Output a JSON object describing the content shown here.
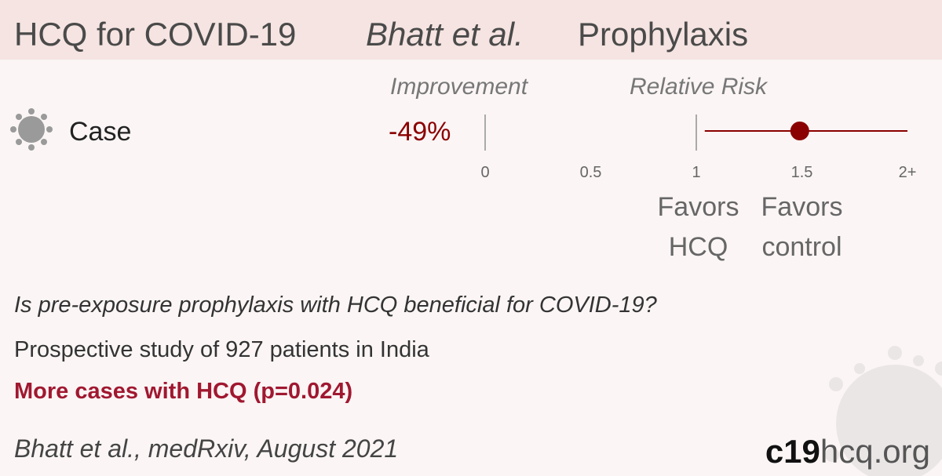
{
  "header": {
    "title": "HCQ for COVID-19",
    "study": "Bhatt et al.",
    "topic": "Prophylaxis"
  },
  "chart_data": {
    "type": "forest",
    "improvement_heading": "Improvement",
    "axis_label": "Relative Risk",
    "categories": [
      "Case"
    ],
    "improvements": [
      -49
    ],
    "improvement_labels": [
      "-49%"
    ],
    "values": [
      1.49
    ],
    "ci_low": [
      1.04
    ],
    "ci_high": [
      2
    ],
    "color": "#8b0000",
    "xlim": [
      0,
      2
    ],
    "xticks": [
      0,
      0.5,
      1,
      1.5,
      {
        "value": 2,
        "label": "2+"
      }
    ],
    "favors_left": [
      "Favors",
      "HCQ"
    ],
    "favors_right": [
      "Favors",
      "control"
    ]
  },
  "summary": {
    "question": "Is pre-exposure prophylaxis with HCQ beneficial for COVID-19?",
    "design": "Prospective study of 927 patients in India",
    "result": "More cases with HCQ (p=0.024)"
  },
  "footer": {
    "citation": "Bhatt et al., medRxiv, August 2021",
    "site_bold": "c19",
    "site_rest": "hcq.org"
  }
}
